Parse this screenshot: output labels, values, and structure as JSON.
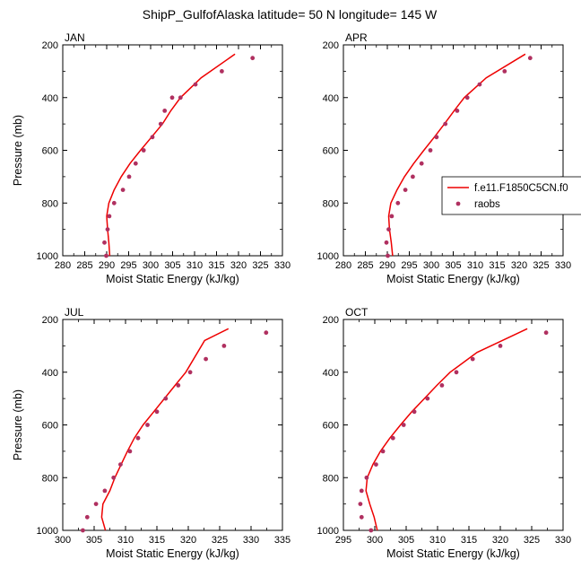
{
  "title": "ShipP_GulfofAlaska  latitude= 50 N longitude= 145 W",
  "legend": {
    "model_label": "f.e11.F1850C5CN.f0",
    "obs_label": "raobs",
    "model_color": "#ee0000",
    "obs_color": "#b03060"
  },
  "chart_data": [
    {
      "type": "line+scatter",
      "panel": "JAN",
      "xlabel": "Moist Static Energy (kJ/kg)",
      "ylabel": "Pressure (mb)",
      "xlim": [
        280,
        330
      ],
      "ylim": [
        1000,
        200
      ],
      "xticks": [
        280,
        285,
        290,
        295,
        300,
        305,
        310,
        315,
        320,
        325,
        330
      ],
      "yticks": [
        200,
        400,
        600,
        800,
        1000
      ],
      "model": {
        "x": [
          290.7,
          290.5,
          290.2,
          290.0,
          290.5,
          291.7,
          293.3,
          295.3,
          297.7,
          300.2,
          302.7,
          304.6,
          306.8,
          311.5,
          319.2
        ],
        "p": [
          1000,
          950,
          900,
          850,
          800,
          750,
          700,
          650,
          600,
          550,
          500,
          450,
          400,
          325,
          235
        ]
      },
      "obs": {
        "x": [
          289.9,
          289.5,
          290.2,
          290.6,
          291.7,
          293.7,
          295.1,
          296.6,
          298.4,
          300.4,
          302.3,
          303.2,
          304.9,
          306.8,
          310.2,
          316.2,
          323.2
        ],
        "p": [
          1000,
          950,
          900,
          850,
          800,
          750,
          700,
          650,
          600,
          550,
          500,
          450,
          400,
          400,
          350,
          300,
          250
        ]
      }
    },
    {
      "type": "line+scatter",
      "panel": "APR",
      "xlabel": "Moist Static Energy (kJ/kg)",
      "ylabel": "",
      "xlim": [
        280,
        330
      ],
      "ylim": [
        1000,
        200
      ],
      "xticks": [
        280,
        285,
        290,
        295,
        300,
        305,
        310,
        315,
        320,
        325,
        330
      ],
      "yticks": [
        200,
        400,
        600,
        800,
        1000
      ],
      "model": {
        "x": [
          291.2,
          290.9,
          290.5,
          290.3,
          290.8,
          292.2,
          293.9,
          296.0,
          298.3,
          300.7,
          303.0,
          305.2,
          307.5,
          312.5,
          321.4
        ],
        "p": [
          1000,
          950,
          900,
          850,
          800,
          750,
          700,
          650,
          600,
          550,
          500,
          450,
          400,
          325,
          235
        ]
      },
      "obs": {
        "x": [
          290.1,
          289.8,
          290.3,
          291.0,
          292.4,
          294.1,
          295.8,
          297.8,
          299.8,
          301.2,
          303.2,
          305.9,
          308.2,
          311.0,
          316.7,
          322.5
        ],
        "p": [
          1000,
          950,
          900,
          850,
          800,
          750,
          700,
          650,
          600,
          550,
          500,
          450,
          400,
          350,
          300,
          250
        ]
      }
    },
    {
      "type": "line+scatter",
      "panel": "JUL",
      "xlabel": "Moist Static Energy (kJ/kg)",
      "ylabel": "Pressure (mb)",
      "xlim": [
        300,
        335
      ],
      "ylim": [
        1000,
        200
      ],
      "xticks": [
        300,
        305,
        310,
        315,
        320,
        325,
        330,
        335
      ],
      "yticks": [
        200,
        400,
        600,
        800,
        1000
      ],
      "model": {
        "x": [
          306.8,
          306.2,
          306.4,
          307.5,
          308.3,
          309.3,
          310.3,
          311.4,
          312.8,
          314.5,
          316.2,
          317.9,
          319.6,
          322.6,
          326.4
        ],
        "p": [
          1000,
          950,
          900,
          850,
          800,
          750,
          700,
          650,
          600,
          550,
          500,
          450,
          400,
          280,
          235
        ]
      },
      "obs": {
        "x": [
          303.2,
          303.9,
          305.3,
          306.7,
          308.1,
          309.2,
          310.7,
          312.0,
          313.5,
          315.0,
          316.4,
          318.4,
          320.3,
          322.8,
          325.7,
          332.4
        ],
        "p": [
          1000,
          950,
          900,
          850,
          800,
          750,
          700,
          650,
          600,
          550,
          500,
          450,
          400,
          350,
          300,
          250
        ]
      }
    },
    {
      "type": "line+scatter",
      "panel": "OCT",
      "xlabel": "Moist Static Energy (kJ/kg)",
      "ylabel": "",
      "xlim": [
        295,
        330
      ],
      "ylim": [
        1000,
        200
      ],
      "xticks": [
        295,
        300,
        305,
        310,
        315,
        320,
        325,
        330
      ],
      "yticks": [
        200,
        400,
        600,
        800,
        1000
      ],
      "model": {
        "x": [
          300.4,
          299.9,
          299.2,
          298.6,
          298.8,
          299.7,
          300.9,
          302.4,
          304.1,
          305.9,
          307.9,
          309.9,
          312.0,
          316.3,
          324.3
        ],
        "p": [
          1000,
          950,
          900,
          850,
          800,
          750,
          700,
          650,
          600,
          550,
          500,
          450,
          400,
          325,
          235
        ]
      },
      "obs": {
        "x": [
          299.4,
          297.9,
          297.7,
          297.9,
          298.7,
          300.2,
          301.3,
          302.9,
          304.6,
          306.3,
          308.4,
          310.7,
          313.0,
          315.6,
          320.0,
          327.3
        ],
        "p": [
          1000,
          950,
          900,
          850,
          800,
          750,
          700,
          650,
          600,
          550,
          500,
          450,
          400,
          350,
          300,
          250
        ]
      }
    }
  ]
}
